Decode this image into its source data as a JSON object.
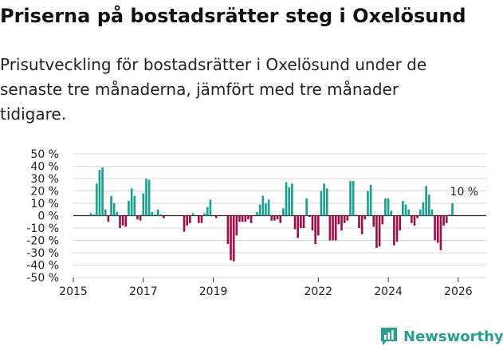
{
  "title": "Priserna på bostadsrätter steg i Oxelösund",
  "subtitle": "Prisutveckling för bostadsrätter i Oxelösund under de senaste tre månaderna, jämfört med tre månader tidigare.",
  "brand": {
    "name": "Newsworthy",
    "color": "#2a9d8f"
  },
  "colors": {
    "positive": "#1a9e8f",
    "negative": "#9e0f4a",
    "grid": "#d9d9d9",
    "zero": "#222222"
  },
  "chart_data": {
    "type": "bar",
    "title": "Priserna på bostadsrätter steg i Oxelösund",
    "ylabel": "",
    "xlabel": "",
    "ylim": [
      -50,
      50
    ],
    "xlim": [
      2015,
      2026.8
    ],
    "y_ticks": [
      "50 %",
      "40 %",
      "30 %",
      "20 %",
      "10 %",
      "0 %",
      "-10 %",
      "-20 %",
      "-30 %",
      "-40 %",
      "-50 %"
    ],
    "y_tick_values": [
      50,
      40,
      30,
      20,
      10,
      0,
      -10,
      -20,
      -30,
      -40,
      -50
    ],
    "x_ticks": [
      "2015",
      "2017",
      "2019",
      "2022",
      "2024",
      "2026"
    ],
    "x_tick_values": [
      2015,
      2017,
      2019,
      2022,
      2024,
      2026
    ],
    "annotation": {
      "text": "10 %",
      "x": 2026.17,
      "value": 10
    },
    "start": 2015.5,
    "step": 0.08333,
    "values": [
      2,
      1,
      26,
      37,
      39,
      5,
      -5,
      16,
      10,
      3,
      -10,
      -8,
      -9,
      12,
      22,
      16,
      -3,
      -4,
      18,
      30,
      29,
      3,
      1,
      5,
      1,
      -2,
      0,
      0,
      0,
      0,
      0,
      0,
      -13,
      -8,
      -6,
      2,
      0,
      -6,
      -6,
      2,
      7,
      13,
      0,
      -2,
      0,
      0,
      0,
      -23,
      -36,
      -37,
      -16,
      -5,
      -5,
      -5,
      -3,
      -6,
      0,
      3,
      9,
      16,
      10,
      13,
      -4,
      -4,
      -3,
      -6,
      6,
      27,
      23,
      26,
      -11,
      -18,
      -10,
      -10,
      14,
      -1,
      -12,
      -23,
      -16,
      20,
      26,
      22,
      -20,
      -20,
      -20,
      -7,
      -12,
      -6,
      -4,
      28,
      28,
      0,
      -10,
      -15,
      -3,
      20,
      25,
      -9,
      -26,
      -25,
      -7,
      14,
      14,
      4,
      -24,
      -21,
      -12,
      12,
      9,
      5,
      -6,
      -8,
      -2,
      5,
      11,
      24,
      17,
      5,
      -20,
      -22,
      -28,
      -8,
      -6,
      1,
      10
    ]
  }
}
